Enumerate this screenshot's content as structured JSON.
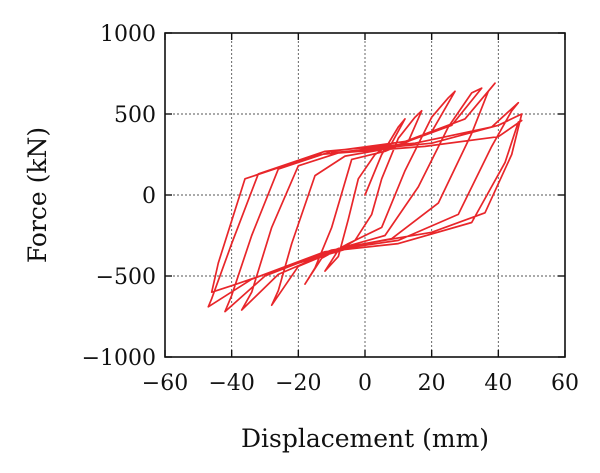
{
  "chart_data": {
    "type": "line",
    "title": "",
    "xlabel": "Displacement (mm)",
    "ylabel": "Force (kN)",
    "xlim": [
      -60,
      60
    ],
    "ylim": [
      -1000,
      1000
    ],
    "xticks": [
      -60,
      -40,
      -20,
      0,
      20,
      40,
      60
    ],
    "yticks": [
      -1000,
      -500,
      0,
      500,
      1000
    ],
    "xtick_labels": [
      "−60",
      "−40",
      "−20",
      "0",
      "20",
      "40",
      "60"
    ],
    "ytick_labels": [
      "−1000",
      "−500",
      "0",
      "500",
      "1000"
    ],
    "grid": true,
    "legend": "none",
    "series": [
      {
        "color": "#e8262a",
        "points": [
          [
            0,
            0
          ],
          [
            5,
            250
          ],
          [
            10,
            420
          ],
          [
            12,
            470
          ],
          [
            8,
            320
          ],
          [
            3,
            250
          ],
          [
            -2,
            100
          ],
          [
            -5,
            -150
          ],
          [
            -8,
            -380
          ],
          [
            -12,
            -470
          ],
          [
            -8,
            -340
          ],
          [
            -3,
            -280
          ],
          [
            2,
            -120
          ],
          [
            5,
            100
          ],
          [
            10,
            350
          ],
          [
            15,
            480
          ],
          [
            17,
            520
          ],
          [
            13,
            330
          ],
          [
            6,
            270
          ],
          [
            -4,
            220
          ],
          [
            -10,
            -200
          ],
          [
            -15,
            -450
          ],
          [
            -18,
            -550
          ],
          [
            -13,
            -390
          ],
          [
            -5,
            -300
          ],
          [
            5,
            -200
          ],
          [
            12,
            150
          ],
          [
            20,
            480
          ],
          [
            25,
            600
          ],
          [
            27,
            640
          ],
          [
            20,
            390
          ],
          [
            8,
            290
          ],
          [
            -6,
            240
          ],
          [
            -15,
            120
          ],
          [
            -22,
            -300
          ],
          [
            -26,
            -590
          ],
          [
            -28,
            -680
          ],
          [
            -20,
            -440
          ],
          [
            -6,
            -320
          ],
          [
            6,
            -250
          ],
          [
            16,
            50
          ],
          [
            25,
            420
          ],
          [
            32,
            630
          ],
          [
            35,
            660
          ],
          [
            26,
            430
          ],
          [
            10,
            310
          ],
          [
            -8,
            260
          ],
          [
            -20,
            180
          ],
          [
            -28,
            -200
          ],
          [
            -34,
            -600
          ],
          [
            -37,
            -710
          ],
          [
            -26,
            -490
          ],
          [
            -8,
            -330
          ],
          [
            8,
            -270
          ],
          [
            22,
            -50
          ],
          [
            32,
            380
          ],
          [
            37,
            640
          ],
          [
            39,
            690
          ],
          [
            30,
            470
          ],
          [
            12,
            330
          ],
          [
            -10,
            270
          ],
          [
            -26,
            160
          ],
          [
            -34,
            -250
          ],
          [
            -40,
            -620
          ],
          [
            -42,
            -720
          ],
          [
            -30,
            -500
          ],
          [
            -10,
            -340
          ],
          [
            10,
            -280
          ],
          [
            28,
            -120
          ],
          [
            38,
            300
          ],
          [
            44,
            520
          ],
          [
            46,
            570
          ],
          [
            38,
            420
          ],
          [
            15,
            320
          ],
          [
            -12,
            270
          ],
          [
            -32,
            130
          ],
          [
            -40,
            -300
          ],
          [
            -46,
            -640
          ],
          [
            -47,
            -690
          ],
          [
            -34,
            -520
          ],
          [
            -12,
            -350
          ],
          [
            10,
            -300
          ],
          [
            32,
            -170
          ],
          [
            42,
            200
          ],
          [
            46,
            450
          ],
          [
            47,
            460
          ],
          [
            40,
            360
          ],
          [
            18,
            300
          ],
          [
            -14,
            250
          ],
          [
            -36,
            100
          ],
          [
            -44,
            -420
          ],
          [
            -46,
            -600
          ],
          [
            -40,
            -560
          ],
          [
            -20,
            -420
          ],
          [
            0,
            -300
          ],
          [
            20,
            -230
          ],
          [
            36,
            -110
          ],
          [
            44,
            250
          ],
          [
            47,
            500
          ],
          [
            40,
            430
          ],
          [
            20,
            320
          ],
          [
            0,
            280
          ],
          [
            -10,
            260
          ]
        ]
      }
    ]
  }
}
